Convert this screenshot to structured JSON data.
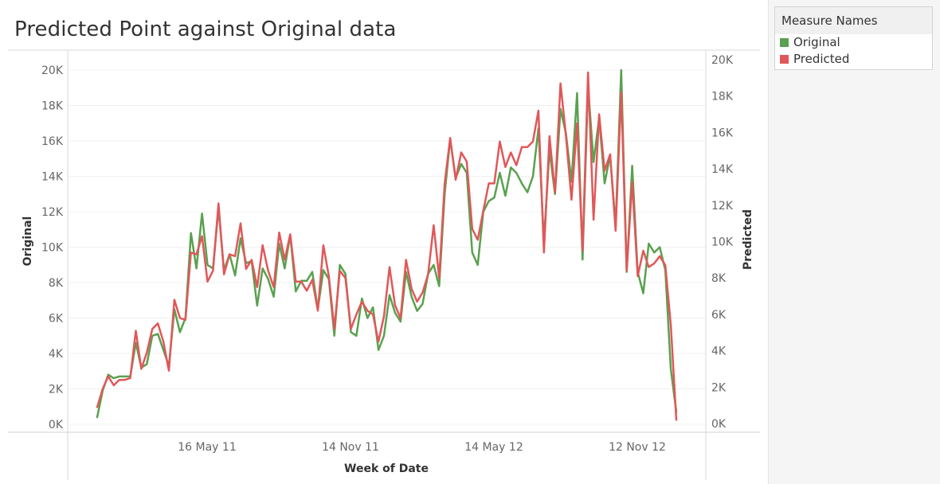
{
  "chart_data": {
    "type": "line",
    "title": "Predicted Point against Original data",
    "xlabel": "Week of Date",
    "ylabel_left": "Original",
    "ylabel_right": "Predicted",
    "x_ticks": [
      "16 May 11",
      "14 Nov 11",
      "14 May 12",
      "12 Nov 12"
    ],
    "y_left_ticks": [
      "0K",
      "2K",
      "4K",
      "6K",
      "8K",
      "10K",
      "12K",
      "14K",
      "16K",
      "18K",
      "20K"
    ],
    "y_right_ticks": [
      "0K",
      "2K",
      "4K",
      "6K",
      "8K",
      "10K",
      "12K",
      "14K",
      "16K",
      "18K",
      "20K"
    ],
    "y_left_range": [
      0,
      20000
    ],
    "y_right_range": [
      0,
      20000
    ],
    "legend": {
      "title": "Measure Names",
      "placement": "top-right"
    },
    "series": [
      {
        "name": "Original",
        "color": "#59a14f",
        "axis": "left",
        "values": [
          400,
          1900,
          2800,
          2600,
          2700,
          2700,
          2700,
          4600,
          3200,
          3400,
          5000,
          5100,
          4200,
          3300,
          6500,
          5200,
          6000,
          10800,
          8800,
          11900,
          9000,
          8800,
          12200,
          8700,
          9600,
          8400,
          10500,
          9100,
          9200,
          6700,
          8800,
          8200,
          7200,
          10200,
          8800,
          10700,
          7500,
          8100,
          8100,
          8600,
          6500,
          8700,
          8200,
          5000,
          9000,
          8500,
          5200,
          5000,
          7100,
          6000,
          6600,
          4200,
          5000,
          7300,
          6300,
          5800,
          8600,
          7200,
          6400,
          6800,
          8500,
          9000,
          7800,
          13000,
          16100,
          13900,
          14700,
          14200,
          9700,
          9000,
          12000,
          12600,
          12800,
          14200,
          12900,
          14500,
          14200,
          13600,
          13100,
          14000,
          16700,
          10300,
          15500,
          13000,
          17800,
          16400,
          13700,
          18700,
          9300,
          19100,
          14800,
          17300,
          13600,
          15200,
          11200,
          20000,
          8600,
          14600,
          8600,
          7400,
          10200,
          9700,
          10000,
          8700,
          3100,
          700
        ]
      },
      {
        "name": "Predicted",
        "color": "#e15759",
        "axis": "right",
        "values": [
          900,
          1900,
          2600,
          2100,
          2400,
          2400,
          2500,
          5100,
          3000,
          3900,
          5200,
          5500,
          4500,
          2900,
          6800,
          5800,
          5700,
          9400,
          9300,
          10300,
          7800,
          8400,
          12100,
          8200,
          9300,
          9200,
          11000,
          8500,
          9000,
          7500,
          9800,
          8400,
          7500,
          10500,
          9000,
          10400,
          7800,
          7800,
          7300,
          7900,
          6200,
          9800,
          8100,
          5200,
          8400,
          8000,
          5200,
          6000,
          6700,
          6200,
          6000,
          4500,
          5900,
          8600,
          6500,
          5800,
          9000,
          7400,
          6700,
          7200,
          8200,
          10900,
          8000,
          13200,
          15700,
          13400,
          14900,
          14400,
          10700,
          10100,
          11700,
          13200,
          13200,
          15500,
          14100,
          14900,
          14200,
          15200,
          15200,
          15500,
          17200,
          9400,
          15800,
          12700,
          18700,
          15800,
          12300,
          16500,
          9500,
          19300,
          11200,
          17000,
          13900,
          14800,
          10600,
          18200,
          8400,
          13300,
          8100,
          9500,
          8600,
          8800,
          9200,
          8700,
          5400,
          200
        ]
      }
    ]
  }
}
